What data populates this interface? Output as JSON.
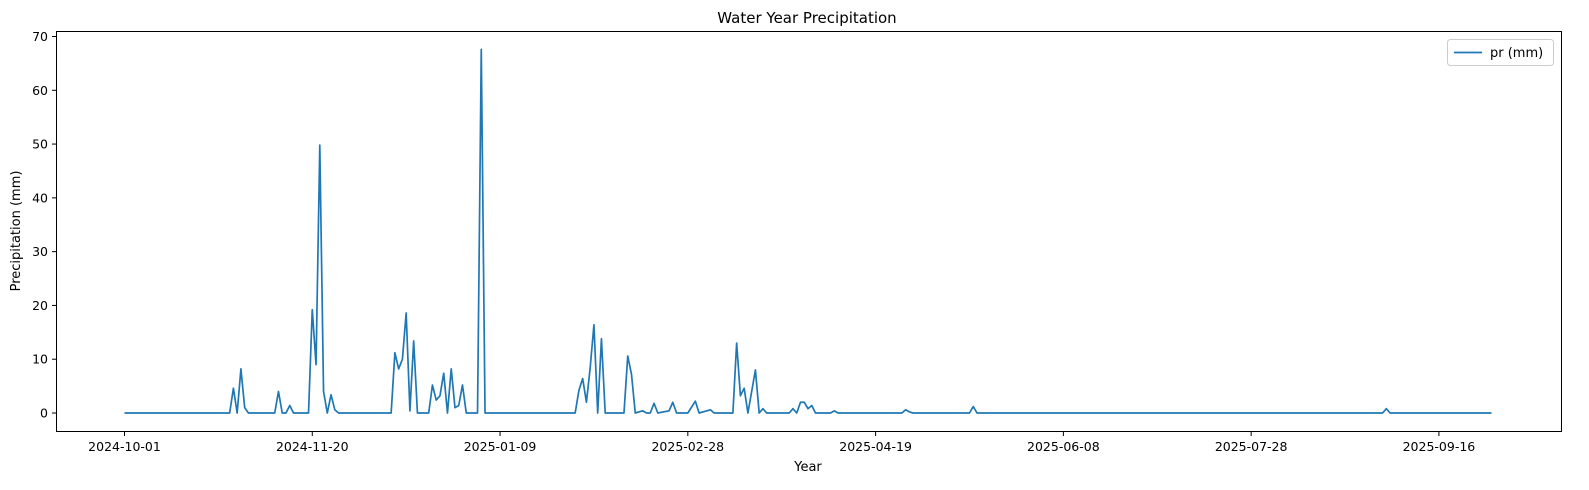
{
  "chart_data": {
    "type": "line",
    "title": "Water Year Precipitation",
    "xlabel": "Year",
    "ylabel": "Precipitation (mm)",
    "x_range": [
      "2024-10-01",
      "2025-09-30"
    ],
    "ylim": [
      0,
      70
    ],
    "x_tick_labels": [
      "2024-10-01",
      "2024-11-20",
      "2025-01-09",
      "2025-02-28",
      "2025-04-19",
      "2025-06-08",
      "2025-07-28",
      "2025-09-16"
    ],
    "y_tick_labels": [
      "0",
      "10",
      "20",
      "30",
      "40",
      "50",
      "60",
      "70"
    ],
    "grid": false,
    "legend_position": "top-right",
    "series": [
      {
        "name": "pr (mm)",
        "color": "#1f77b4",
        "points": [
          [
            "2024-10-01",
            0
          ],
          [
            "2024-10-29",
            0
          ],
          [
            "2024-10-30",
            4.6
          ],
          [
            "2024-10-31",
            0
          ],
          [
            "2024-11-01",
            8.2
          ],
          [
            "2024-11-02",
            1.0
          ],
          [
            "2024-11-03",
            0
          ],
          [
            "2024-11-10",
            0
          ],
          [
            "2024-11-11",
            4.0
          ],
          [
            "2024-11-12",
            0
          ],
          [
            "2024-11-13",
            0
          ],
          [
            "2024-11-14",
            1.4
          ],
          [
            "2024-11-15",
            0
          ],
          [
            "2024-11-19",
            0
          ],
          [
            "2024-11-20",
            19.2
          ],
          [
            "2024-11-21",
            9.0
          ],
          [
            "2024-11-22",
            49.8
          ],
          [
            "2024-11-23",
            4.0
          ],
          [
            "2024-11-24",
            0
          ],
          [
            "2024-11-25",
            3.4
          ],
          [
            "2024-11-26",
            0.6
          ],
          [
            "2024-11-27",
            0
          ],
          [
            "2024-12-11",
            0
          ],
          [
            "2024-12-12",
            11.2
          ],
          [
            "2024-12-13",
            8.2
          ],
          [
            "2024-12-14",
            10.0
          ],
          [
            "2024-12-15",
            18.6
          ],
          [
            "2024-12-16",
            0.4
          ],
          [
            "2024-12-17",
            13.4
          ],
          [
            "2024-12-18",
            0
          ],
          [
            "2024-12-21",
            0
          ],
          [
            "2024-12-22",
            5.2
          ],
          [
            "2024-12-23",
            2.4
          ],
          [
            "2024-12-24",
            3.2
          ],
          [
            "2024-12-25",
            7.4
          ],
          [
            "2024-12-26",
            0
          ],
          [
            "2024-12-27",
            8.2
          ],
          [
            "2024-12-28",
            1.0
          ],
          [
            "2024-12-29",
            1.4
          ],
          [
            "2024-12-30",
            5.2
          ],
          [
            "2024-12-31",
            0
          ],
          [
            "2025-01-03",
            0
          ],
          [
            "2025-01-04",
            67.6
          ],
          [
            "2025-01-05",
            0
          ],
          [
            "2025-01-29",
            0
          ],
          [
            "2025-01-30",
            4.2
          ],
          [
            "2025-01-31",
            6.4
          ],
          [
            "2025-02-01",
            2.0
          ],
          [
            "2025-02-02",
            8.4
          ],
          [
            "2025-02-03",
            16.4
          ],
          [
            "2025-02-04",
            0
          ],
          [
            "2025-02-05",
            13.8
          ],
          [
            "2025-02-06",
            0
          ],
          [
            "2025-02-11",
            0
          ],
          [
            "2025-02-12",
            10.6
          ],
          [
            "2025-02-13",
            7.2
          ],
          [
            "2025-02-14",
            0
          ],
          [
            "2025-02-16",
            0.4
          ],
          [
            "2025-02-17",
            0
          ],
          [
            "2025-02-18",
            0
          ],
          [
            "2025-02-19",
            1.8
          ],
          [
            "2025-02-20",
            0
          ],
          [
            "2025-02-23",
            0.4
          ],
          [
            "2025-02-24",
            2.0
          ],
          [
            "2025-02-25",
            0
          ],
          [
            "2025-02-28",
            0
          ],
          [
            "2025-03-02",
            2.2
          ],
          [
            "2025-03-03",
            0
          ],
          [
            "2025-03-06",
            0.6
          ],
          [
            "2025-03-07",
            0
          ],
          [
            "2025-03-12",
            0
          ],
          [
            "2025-03-13",
            13.0
          ],
          [
            "2025-03-14",
            3.2
          ],
          [
            "2025-03-15",
            4.6
          ],
          [
            "2025-03-16",
            0
          ],
          [
            "2025-03-17",
            4.0
          ],
          [
            "2025-03-18",
            8.0
          ],
          [
            "2025-03-19",
            0
          ],
          [
            "2025-03-20",
            0.8
          ],
          [
            "2025-03-21",
            0
          ],
          [
            "2025-03-27",
            0
          ],
          [
            "2025-03-28",
            0.8
          ],
          [
            "2025-03-29",
            0
          ],
          [
            "2025-03-30",
            2.0
          ],
          [
            "2025-03-31",
            2.0
          ],
          [
            "2025-04-01",
            0.8
          ],
          [
            "2025-04-02",
            1.4
          ],
          [
            "2025-04-03",
            0
          ],
          [
            "2025-04-07",
            0
          ],
          [
            "2025-04-08",
            0.4
          ],
          [
            "2025-04-09",
            0
          ],
          [
            "2025-04-26",
            0
          ],
          [
            "2025-04-27",
            0.6
          ],
          [
            "2025-04-28",
            0.2
          ],
          [
            "2025-04-29",
            0
          ],
          [
            "2025-05-14",
            0
          ],
          [
            "2025-05-15",
            1.2
          ],
          [
            "2025-05-16",
            0
          ],
          [
            "2025-09-01",
            0
          ],
          [
            "2025-09-02",
            0.8
          ],
          [
            "2025-09-03",
            0
          ],
          [
            "2025-09-30",
            0
          ]
        ]
      }
    ]
  }
}
